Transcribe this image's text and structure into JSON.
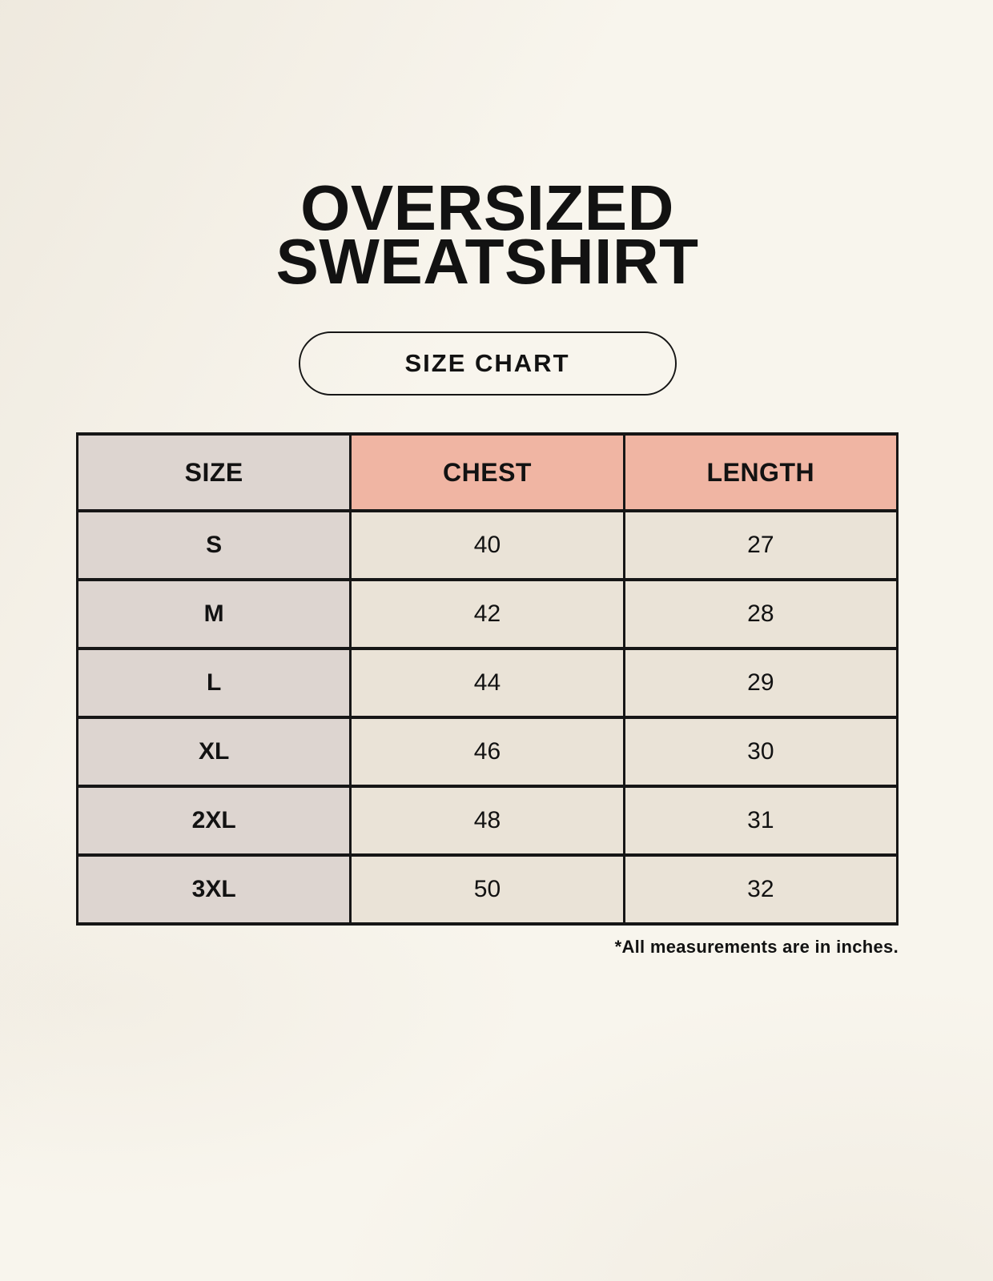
{
  "title": {
    "line1": "OVERSIZED",
    "line2": "SWEATSHIRT"
  },
  "size_chart_button": {
    "label": "SIZE CHART"
  },
  "chart_data": {
    "type": "table",
    "title": "OVERSIZED SWEATSHIRT",
    "subtitle": "SIZE CHART",
    "columns": [
      "SIZE",
      "CHEST",
      "LENGTH"
    ],
    "rows": [
      [
        "S",
        40,
        27
      ],
      [
        "M",
        42,
        28
      ],
      [
        "L",
        44,
        29
      ],
      [
        "XL",
        46,
        30
      ],
      [
        "2XL",
        48,
        31
      ],
      [
        "3XL",
        50,
        32
      ]
    ],
    "footnote": "*All measurements are in inches.",
    "units": "inches"
  },
  "colors": {
    "background": "#f8f5ed",
    "header_accent": "#f0b5a3",
    "size_column_bg": "#ddd5d0",
    "cell_bg": "#eae3d7",
    "border": "#161616",
    "text": "#121212"
  }
}
